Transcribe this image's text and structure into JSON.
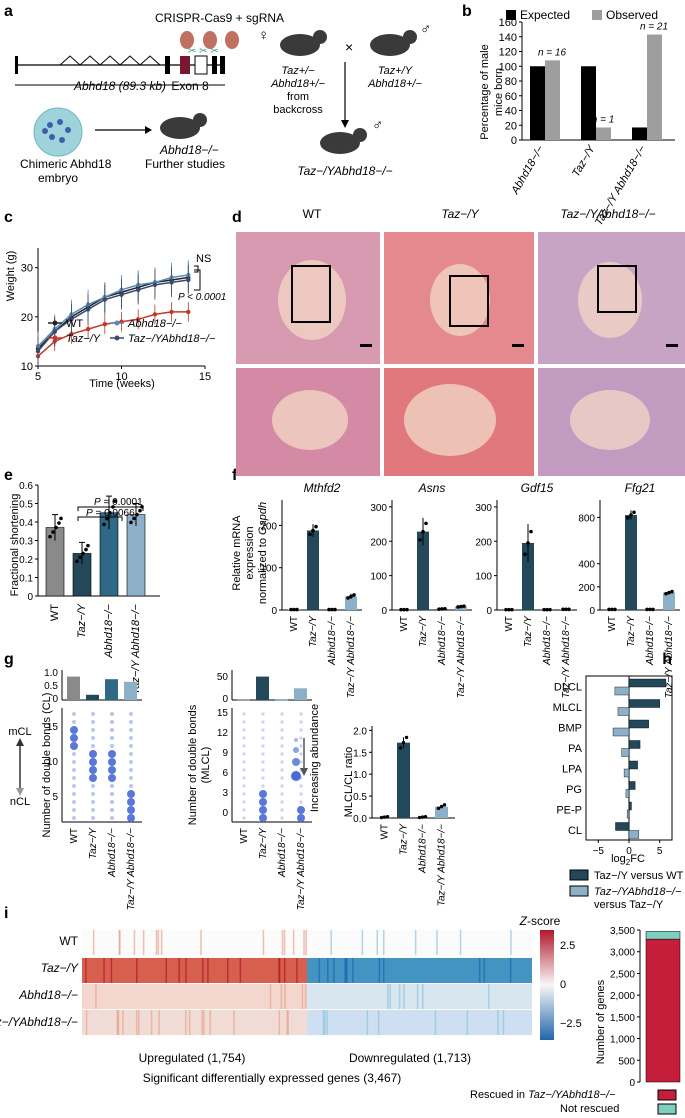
{
  "panel_letters": [
    "a",
    "b",
    "c",
    "d",
    "e",
    "f",
    "g",
    "h",
    "i"
  ],
  "panel_a": {
    "crispr_label": "CRISPR-Cas9 + sgRNA",
    "gene_label": "Abhd18 (89.3 kb)",
    "exon_label": "Exon 8",
    "embryo_label_1": "Chimeric Abhd18",
    "embryo_label_2": "embryo",
    "mouse_ko_label": "Abhd18−/−",
    "further_label": "Further studies",
    "female_symbol": "♀",
    "male_symbol": "♂",
    "cross_symbol": "×",
    "female_geno_1": "Taz+/−",
    "female_geno_2": "Abhd18+/−",
    "female_geno_3": "from",
    "female_geno_4": "backcross",
    "male_geno_1": "Taz+/Y",
    "male_geno_2": "Abhd18+/−",
    "offspring_label": "Taz−/YAbhd18−/−"
  },
  "chart_data": [
    {
      "panel": "b",
      "type": "bar",
      "ylabel": "Percentage of male mice born",
      "ylim": [
        0,
        160
      ],
      "yticks": [
        0,
        20,
        40,
        60,
        80,
        100,
        120,
        140,
        160
      ],
      "categories": [
        "Abhd18−/−",
        "Taz−/Y",
        "Taz−/Y Abhd18−/−"
      ],
      "series": [
        {
          "name": "Expected",
          "color": "#000000",
          "values": [
            100,
            100,
            17
          ]
        },
        {
          "name": "Observed",
          "color": "#9e9e9e",
          "values": [
            108,
            17,
            143
          ]
        }
      ],
      "annotations": [
        "n = 16",
        "n = 1",
        "n = 21"
      ]
    },
    {
      "panel": "c",
      "type": "line",
      "xlabel": "Time (weeks)",
      "ylabel": "Weight (g)",
      "xlim": [
        5,
        15
      ],
      "ylim": [
        10,
        34
      ],
      "xticks": [
        5,
        10,
        15
      ],
      "yticks": [
        10,
        20,
        30
      ],
      "series": [
        {
          "name": "WT",
          "color": "#222222",
          "x": [
            5,
            6,
            7,
            8,
            9,
            10,
            11,
            12,
            13,
            14
          ],
          "y": [
            13.5,
            17,
            20,
            22,
            24,
            25,
            26,
            27,
            27.5,
            28
          ],
          "err": 3
        },
        {
          "name": "Taz−/Y",
          "color": "#c0392b",
          "x": [
            5,
            6,
            7,
            8,
            9,
            10,
            11,
            12,
            13,
            14
          ],
          "y": [
            12,
            15,
            16.5,
            17.5,
            18.5,
            19,
            19.5,
            20.5,
            21,
            21
          ],
          "err": 2
        },
        {
          "name": "Abhd18−/−",
          "color": "#5b8ab5",
          "x": [
            5,
            6,
            7,
            8,
            9,
            10,
            11,
            12,
            13,
            14
          ],
          "y": [
            14,
            17.5,
            20.5,
            22.5,
            24,
            25.5,
            26.5,
            27,
            28,
            28.5
          ],
          "err": 3
        },
        {
          "name": "Taz−/YAbhd18−/−",
          "color": "#3b4a6b",
          "x": [
            5,
            6,
            7,
            8,
            9,
            10,
            11,
            12,
            13,
            14
          ],
          "y": [
            13,
            17,
            19.5,
            21.5,
            23.5,
            24.5,
            25.5,
            26.5,
            27,
            27.5
          ],
          "err": 3
        }
      ],
      "annotations": [
        "NS",
        "P < 0.0001"
      ]
    },
    {
      "panel": "e",
      "type": "bar",
      "ylabel": "Fractional shortening",
      "ylim": [
        0,
        0.6
      ],
      "yticks": [
        0,
        0.1,
        0.2,
        0.3,
        0.4,
        0.5,
        0.6
      ],
      "categories": [
        "WT",
        "Taz−/Y",
        "Abhd18−/−",
        "Taz−/Y Abhd18−/−"
      ],
      "values": [
        0.37,
        0.23,
        0.45,
        0.44
      ],
      "errors": [
        0.07,
        0.06,
        0.09,
        0.06
      ],
      "colors": [
        "#8a8a8a",
        "#23485a",
        "#2e6a86",
        "#8bb0c8"
      ],
      "annotations": [
        "P = 0.0066",
        "P = 0.0001"
      ]
    },
    {
      "panel": "f",
      "type": "bar",
      "ylabel": "Relative mRNA expression normalized to Gapdh",
      "categories": [
        "WT",
        "Taz−/Y",
        "Abhd18−/−",
        "Taz−/Y Abhd18−/−"
      ],
      "subplots": [
        {
          "title": "Mthfd2",
          "yticks": [
            0,
            100,
            200
          ],
          "ylim": [
            0,
            260
          ],
          "values": [
            1,
            188,
            1,
            32
          ],
          "errors": [
            0,
            15,
            0,
            6
          ]
        },
        {
          "title": "Asns",
          "yticks": [
            0,
            100,
            200,
            300
          ],
          "ylim": [
            0,
            320
          ],
          "values": [
            1,
            228,
            3,
            10
          ],
          "errors": [
            0,
            40,
            1,
            2
          ]
        },
        {
          "title": "Gdf15",
          "yticks": [
            0,
            100,
            200,
            300
          ],
          "ylim": [
            0,
            320
          ],
          "values": [
            1,
            195,
            1,
            2
          ],
          "errors": [
            0,
            55,
            0,
            0
          ]
        },
        {
          "title": "Ffg21",
          "yticks": [
            0,
            200,
            400,
            800
          ],
          "ylim": [
            0,
            950
          ],
          "values": [
            5,
            820,
            5,
            150
          ],
          "errors": [
            0,
            40,
            0,
            15
          ]
        }
      ]
    },
    {
      "panel": "g-ratio",
      "type": "bar",
      "ylabel": "MLCL/CL ratio",
      "ylim": [
        0,
        2.1
      ],
      "yticks": [
        0,
        0.5,
        1.0,
        1.5,
        2.0
      ],
      "categories": [
        "WT",
        "Taz−/Y",
        "Abhd18−/−",
        "Taz−/Y Abhd18−/−"
      ],
      "values": [
        0.02,
        1.72,
        0.02,
        0.26
      ],
      "errors": [
        0.01,
        0.12,
        0.01,
        0.04
      ],
      "colors": [
        "#8a8a8a",
        "#23485a",
        "#2e6a86",
        "#8bb0c8"
      ]
    },
    {
      "panel": "h",
      "type": "bar",
      "orientation": "horizontal",
      "xlabel": "log2FC",
      "xlim": [
        -7,
        7
      ],
      "xticks": [
        -5,
        0,
        5
      ],
      "categories": [
        "DLCL",
        "MLCL",
        "BMP",
        "PA",
        "LPA",
        "PG",
        "PE-P",
        "CL"
      ],
      "series": [
        {
          "name": "Taz−/Y versus WT",
          "color": "#23485a",
          "values": [
            6.0,
            5.0,
            3.2,
            1.8,
            1.4,
            1.0,
            0.4,
            -2.2
          ]
        },
        {
          "name": "Taz−/YAbhd18−/− versus Taz−/Y",
          "color": "#8bb0c8",
          "values": [
            -2.3,
            -1.8,
            -2.6,
            -1.2,
            -0.8,
            -0.5,
            -0.3,
            1.6
          ]
        }
      ]
    },
    {
      "panel": "i-bar",
      "type": "bar",
      "ylabel": "Number of genes",
      "ylim": [
        0,
        3500
      ],
      "yticks": [
        0,
        500,
        1000,
        1500,
        2000,
        2500,
        3000,
        3500
      ],
      "stacked": [
        {
          "name": "Rescued in Taz−/YAbhd18−/−",
          "color": "#c41e3a",
          "value": 3290
        },
        {
          "name": "Not rescued",
          "color": "#7fcfc0",
          "value": 177
        }
      ]
    }
  ],
  "panel_b": {
    "legend_expected": "Expected",
    "legend_observed": "Observed"
  },
  "panel_c": {
    "legend": [
      "WT",
      "Taz−/Y",
      "Abhd18−/−",
      "Taz−/YAbhd18−/−"
    ]
  },
  "panel_d": {
    "titles": [
      "WT",
      "Taz−/Y",
      "Taz−/YAbhd18−/−"
    ]
  },
  "panel_g": {
    "cl_ylabel": "Number of double bonds (CL)",
    "mlcl_ylabel": "Number of double bonds (MLCL)",
    "mcl_label": "mCL",
    "ncl_label": "nCL",
    "abundance_label": "Increasing abundance",
    "cl_top_yticks": [
      "0",
      "0.5",
      "1.0"
    ],
    "cl_yticks": [
      "5",
      "10",
      "15"
    ],
    "mlcl_top_yticks": [
      "0",
      "50"
    ],
    "mlcl_yticks": [
      "0",
      "3",
      "6",
      "9",
      "12",
      "15"
    ],
    "xcats": [
      "WT",
      "Taz−/Y",
      "Abhd18−/−",
      "Taz−/Y Abhd18−/−"
    ]
  },
  "panel_h": {
    "legend_1": "Taz−/Y versus WT",
    "legend_2a": "Taz−/YAbhd18−/−",
    "legend_2b": "versus Taz−/Y"
  },
  "panel_i": {
    "rows": [
      "WT",
      "Taz−/Y",
      "Abhd18−/−",
      "Taz−/YAbhd18−/−"
    ],
    "zscore_label": "Z-score",
    "zscore_ticks": [
      "2.5",
      "0",
      "−2.5"
    ],
    "up_label": "Upregulated (1,754)",
    "down_label": "Downregulated (1,713)",
    "sig_label": "Significant differentially expressed genes (3,467)",
    "legend_rescued": "Rescued in Taz−/YAbhd18−/−",
    "legend_not": "Not rescued",
    "bar_yticks": [
      "0",
      "500",
      "1,000",
      "1,500",
      "2,000",
      "2,500",
      "3,000",
      "3,500"
    ],
    "bar_ylabel": "Number of genes"
  }
}
